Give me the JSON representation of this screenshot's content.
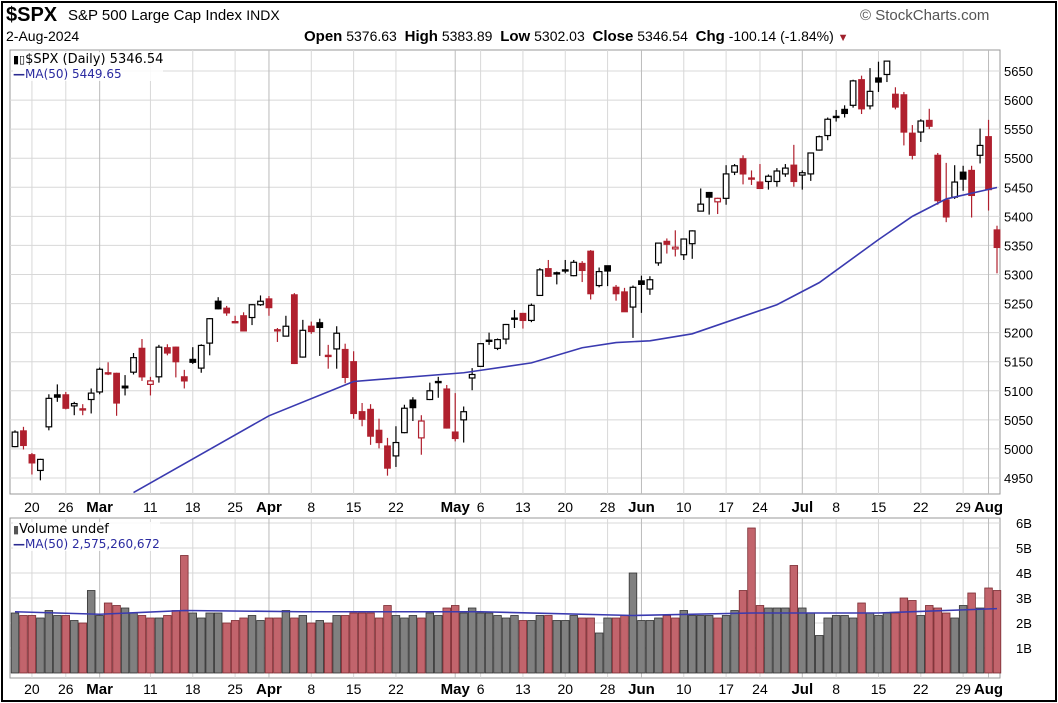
{
  "header": {
    "symbol": "$SPX",
    "name": "S&P 500 Large Cap Index",
    "exchange": "INDX",
    "date": "2-Aug-2024",
    "open_label": "Open",
    "open": "5376.63",
    "high_label": "High",
    "high": "5383.89",
    "low_label": "Low",
    "low": "5302.03",
    "close_label": "Close",
    "close": "5346.54",
    "chg_label": "Chg",
    "chg": "-100.14 (-1.84%)",
    "chg_icon": "triangle-down-icon",
    "watermark": "© StockCharts.com"
  },
  "colors": {
    "up": "#000000",
    "down": "#b0202e",
    "ma": "#3a3ab0",
    "vol_down": "#c2646c",
    "vol_up": "#808080",
    "grid": "#d8d8d8"
  },
  "price_legend": {
    "series": "$SPX (Daily) 5346.54",
    "ma": "MA(50) 5449.65"
  },
  "volume_legend": {
    "series": "Volume undef",
    "ma": "MA(50) 2,575,260,672"
  },
  "chart_data": {
    "type": "candlestick",
    "price_axis": {
      "range": [
        4930,
        5680
      ],
      "ticks": [
        4950,
        5000,
        5050,
        5100,
        5150,
        5200,
        5250,
        5300,
        5350,
        5400,
        5450,
        5500,
        5550,
        5600,
        5650
      ]
    },
    "volume_axis": {
      "unit": "B",
      "range": [
        0,
        6.2
      ],
      "ticks": [
        "1B",
        "2B",
        "3B",
        "4B",
        "5B",
        "6B"
      ]
    },
    "x_ticks": [
      {
        "label": "20",
        "date": "2024-02-20",
        "major": false
      },
      {
        "label": "26",
        "date": "2024-02-26",
        "major": false
      },
      {
        "label": "Mar",
        "date": "2024-03-01",
        "major": true
      },
      {
        "label": "11",
        "date": "2024-03-11",
        "major": false
      },
      {
        "label": "18",
        "date": "2024-03-18",
        "major": false
      },
      {
        "label": "25",
        "date": "2024-03-25",
        "major": false
      },
      {
        "label": "Apr",
        "date": "2024-04-01",
        "major": true
      },
      {
        "label": "8",
        "date": "2024-04-08",
        "major": false
      },
      {
        "label": "15",
        "date": "2024-04-15",
        "major": false
      },
      {
        "label": "22",
        "date": "2024-04-22",
        "major": false
      },
      {
        "label": "May",
        "date": "2024-05-01",
        "major": true
      },
      {
        "label": "6",
        "date": "2024-05-06",
        "major": false
      },
      {
        "label": "13",
        "date": "2024-05-13",
        "major": false
      },
      {
        "label": "20",
        "date": "2024-05-20",
        "major": false
      },
      {
        "label": "28",
        "date": "2024-05-28",
        "major": false
      },
      {
        "label": "Jun",
        "date": "2024-06-03",
        "major": true
      },
      {
        "label": "10",
        "date": "2024-06-10",
        "major": false
      },
      {
        "label": "17",
        "date": "2024-06-17",
        "major": false
      },
      {
        "label": "24",
        "date": "2024-06-24",
        "major": false
      },
      {
        "label": "Jul",
        "date": "2024-07-01",
        "major": true
      },
      {
        "label": "8",
        "date": "2024-07-08",
        "major": false
      },
      {
        "label": "15",
        "date": "2024-07-15",
        "major": false
      },
      {
        "label": "22",
        "date": "2024-07-22",
        "major": false
      },
      {
        "label": "29",
        "date": "2024-07-29",
        "major": false
      },
      {
        "label": "Aug",
        "date": "2024-08-01",
        "major": true
      }
    ],
    "columns": [
      "date",
      "open",
      "high",
      "low",
      "close",
      "volume_B"
    ],
    "candles": [
      [
        "2024-02-15",
        5004,
        5032,
        5003,
        5029,
        2.4
      ],
      [
        "2024-02-16",
        5031,
        5038,
        4999,
        5006,
        2.3
      ],
      [
        "2024-02-20",
        4990,
        4993,
        4956,
        4976,
        2.3
      ],
      [
        "2024-02-21",
        4963,
        4983,
        4946,
        4982,
        2.2
      ],
      [
        "2024-02-22",
        5038,
        5094,
        5032,
        5087,
        2.5
      ],
      [
        "2024-02-23",
        5093,
        5111,
        5081,
        5089,
        2.3
      ],
      [
        "2024-02-26",
        5093,
        5098,
        5068,
        5070,
        2.3
      ],
      [
        "2024-02-27",
        5074,
        5081,
        5058,
        5078,
        2.1
      ],
      [
        "2024-02-28",
        5068,
        5077,
        5058,
        5069,
        2.0
      ],
      [
        "2024-02-29",
        5085,
        5104,
        5061,
        5096,
        3.3
      ],
      [
        "2024-03-01",
        5098,
        5140,
        5094,
        5137,
        2.3
      ],
      [
        "2024-03-04",
        5131,
        5149,
        5127,
        5131,
        2.8
      ],
      [
        "2024-03-05",
        5130,
        5131,
        5057,
        5079,
        2.7
      ],
      [
        "2024-03-06",
        5108,
        5127,
        5092,
        5105,
        2.6
      ],
      [
        "2024-03-07",
        5132,
        5165,
        5128,
        5157,
        2.4
      ],
      [
        "2024-03-08",
        5173,
        5189,
        5117,
        5124,
        2.3
      ],
      [
        "2024-03-11",
        5111,
        5124,
        5092,
        5117,
        2.2
      ],
      [
        "2024-03-12",
        5124,
        5179,
        5114,
        5175,
        2.2
      ],
      [
        "2024-03-13",
        5174,
        5180,
        5161,
        5165,
        2.3
      ],
      [
        "2024-03-14",
        5175,
        5176,
        5123,
        5150,
        2.5
      ],
      [
        "2024-03-15",
        5124,
        5136,
        5104,
        5117,
        4.7
      ],
      [
        "2024-03-18",
        5154,
        5175,
        5146,
        5149,
        2.4
      ],
      [
        "2024-03-19",
        5139,
        5180,
        5131,
        5178,
        2.2
      ],
      [
        "2024-03-20",
        5182,
        5225,
        5161,
        5224,
        2.4
      ],
      [
        "2024-03-21",
        5254,
        5261,
        5240,
        5241,
        2.4
      ],
      [
        "2024-03-22",
        5242,
        5246,
        5229,
        5234,
        2.0
      ],
      [
        "2024-03-25",
        5219,
        5229,
        5216,
        5218,
        2.1
      ],
      [
        "2024-03-26",
        5229,
        5235,
        5203,
        5203,
        2.2
      ],
      [
        "2024-03-27",
        5226,
        5249,
        5213,
        5248,
        2.3
      ],
      [
        "2024-03-28",
        5248,
        5264,
        5246,
        5254,
        2.1
      ],
      [
        "2024-04-01",
        5258,
        5263,
        5229,
        5243,
        2.2
      ],
      [
        "2024-04-02",
        5204,
        5208,
        5184,
        5205,
        2.2
      ],
      [
        "2024-04-03",
        5194,
        5229,
        5194,
        5211,
        2.5
      ],
      [
        "2024-04-04",
        5265,
        5268,
        5146,
        5147,
        2.2
      ],
      [
        "2024-04-05",
        5158,
        5222,
        5157,
        5204,
        2.3
      ],
      [
        "2024-04-08",
        5211,
        5219,
        5198,
        5202,
        2.0
      ],
      [
        "2024-04-09",
        5217,
        5224,
        5160,
        5209,
        2.1
      ],
      [
        "2024-04-10",
        5160,
        5179,
        5138,
        5161,
        2.0
      ],
      [
        "2024-04-11",
        5172,
        5211,
        5138,
        5199,
        2.3
      ],
      [
        "2024-04-12",
        5171,
        5181,
        5113,
        5123,
        2.3
      ],
      [
        "2024-04-15",
        5150,
        5168,
        5052,
        5061,
        2.4
      ],
      [
        "2024-04-16",
        5064,
        5079,
        5039,
        5051,
        2.4
      ],
      [
        "2024-04-17",
        5068,
        5077,
        5007,
        5022,
        2.4
      ],
      [
        "2024-04-18",
        5032,
        5052,
        5001,
        5011,
        2.2
      ],
      [
        "2024-04-19",
        5005,
        5019,
        4954,
        4967,
        2.7
      ],
      [
        "2024-04-22",
        4988,
        5039,
        4969,
        5011,
        2.3
      ],
      [
        "2024-04-23",
        5028,
        5076,
        5027,
        5070,
        2.2
      ],
      [
        "2024-04-24",
        5084,
        5089,
        5048,
        5071,
        2.3
      ],
      [
        "2024-04-25",
        5019,
        5058,
        4990,
        5048,
        2.2
      ],
      [
        "2024-04-26",
        5085,
        5114,
        5084,
        5100,
        2.4
      ],
      [
        "2024-04-29",
        5114,
        5124,
        5088,
        5116,
        2.3
      ],
      [
        "2024-04-30",
        5103,
        5110,
        5035,
        5036,
        2.6
      ],
      [
        "2024-05-01",
        5029,
        5096,
        5013,
        5018,
        2.7
      ],
      [
        "2024-05-02",
        5050,
        5073,
        5011,
        5064,
        2.4
      ],
      [
        "2024-05-03",
        5122,
        5139,
        5101,
        5128,
        2.6
      ],
      [
        "2024-05-06",
        5142,
        5181,
        5142,
        5181,
        2.4
      ],
      [
        "2024-05-07",
        5187,
        5200,
        5179,
        5187,
        2.4
      ],
      [
        "2024-05-08",
        5173,
        5190,
        5170,
        5188,
        2.3
      ],
      [
        "2024-05-09",
        5189,
        5215,
        5180,
        5214,
        2.2
      ],
      [
        "2024-05-10",
        5225,
        5239,
        5208,
        5223,
        2.3
      ],
      [
        "2024-05-13",
        5233,
        5234,
        5207,
        5221,
        2.1
      ],
      [
        "2024-05-14",
        5221,
        5250,
        5218,
        5247,
        2.1
      ],
      [
        "2024-05-15",
        5264,
        5311,
        5263,
        5308,
        2.3
      ],
      [
        "2024-05-16",
        5310,
        5325,
        5296,
        5297,
        2.3
      ],
      [
        "2024-05-17",
        5303,
        5305,
        5283,
        5303,
        2.1
      ],
      [
        "2024-05-20",
        5306,
        5325,
        5302,
        5308,
        2.1
      ],
      [
        "2024-05-21",
        5298,
        5325,
        5297,
        5321,
        2.3
      ],
      [
        "2024-05-22",
        5319,
        5323,
        5287,
        5307,
        2.2
      ],
      [
        "2024-05-23",
        5340,
        5342,
        5257,
        5267,
        2.2
      ],
      [
        "2024-05-24",
        5281,
        5312,
        5278,
        5305,
        1.6
      ],
      [
        "2024-05-28",
        5315,
        5315,
        5280,
        5306,
        2.2
      ],
      [
        "2024-05-29",
        5278,
        5282,
        5255,
        5267,
        2.2
      ],
      [
        "2024-05-30",
        5270,
        5277,
        5236,
        5236,
        2.3
      ],
      [
        "2024-05-31",
        5244,
        5281,
        5191,
        5278,
        4.0
      ],
      [
        "2024-06-03",
        5289,
        5298,
        5234,
        5283,
        2.1
      ],
      [
        "2024-06-04",
        5275,
        5297,
        5265,
        5291,
        2.1
      ],
      [
        "2024-06-05",
        5320,
        5354,
        5315,
        5354,
        2.2
      ],
      [
        "2024-06-06",
        5357,
        5362,
        5336,
        5352,
        2.3
      ],
      [
        "2024-06-07",
        5344,
        5376,
        5331,
        5347,
        2.2
      ],
      [
        "2024-06-10",
        5334,
        5362,
        5325,
        5361,
        2.5
      ],
      [
        "2024-06-11",
        5353,
        5376,
        5327,
        5375,
        2.3
      ],
      [
        "2024-06-12",
        5409,
        5448,
        5409,
        5421,
        2.3
      ],
      [
        "2024-06-13",
        5441,
        5442,
        5403,
        5433,
        2.3
      ],
      [
        "2024-06-14",
        5425,
        5432,
        5404,
        5431,
        2.2
      ],
      [
        "2024-06-17",
        5431,
        5488,
        5420,
        5473,
        2.3
      ],
      [
        "2024-06-18",
        5476,
        5490,
        5471,
        5487,
        2.5
      ],
      [
        "2024-06-20",
        5499,
        5505,
        5455,
        5473,
        3.3
      ],
      [
        "2024-06-21",
        5466,
        5479,
        5454,
        5465,
        5.8
      ],
      [
        "2024-06-24",
        5459,
        5490,
        5447,
        5448,
        2.7
      ],
      [
        "2024-06-25",
        5460,
        5472,
        5446,
        5469,
        2.6
      ],
      [
        "2024-06-26",
        5460,
        5483,
        5451,
        5478,
        2.6
      ],
      [
        "2024-06-27",
        5473,
        5490,
        5468,
        5483,
        2.6
      ],
      [
        "2024-06-28",
        5488,
        5523,
        5451,
        5460,
        4.3
      ],
      [
        "2024-07-01",
        5471,
        5479,
        5446,
        5475,
        2.6
      ],
      [
        "2024-07-02",
        5473,
        5509,
        5461,
        5509,
        2.4
      ],
      [
        "2024-07-03",
        5514,
        5539,
        5513,
        5537,
        1.5
      ],
      [
        "2024-07-05",
        5539,
        5570,
        5531,
        5567,
        2.2
      ],
      [
        "2024-07-08",
        5572,
        5583,
        5563,
        5572,
        2.3
      ],
      [
        "2024-07-09",
        5584,
        5591,
        5570,
        5577,
        2.3
      ],
      [
        "2024-07-10",
        5591,
        5635,
        5587,
        5633,
        2.2
      ],
      [
        "2024-07-11",
        5635,
        5642,
        5576,
        5585,
        2.8
      ],
      [
        "2024-07-12",
        5590,
        5655,
        5584,
        5615,
        2.4
      ],
      [
        "2024-07-15",
        5638,
        5666,
        5614,
        5631,
        2.3
      ],
      [
        "2024-07-16",
        5644,
        5667,
        5631,
        5667,
        2.4
      ],
      [
        "2024-07-17",
        5610,
        5622,
        5584,
        5588,
        2.4
      ],
      [
        "2024-07-18",
        5609,
        5614,
        5522,
        5545,
        3.0
      ],
      [
        "2024-07-19",
        5543,
        5557,
        5498,
        5505,
        2.9
      ],
      [
        "2024-07-22",
        5545,
        5567,
        5528,
        5564,
        2.3
      ],
      [
        "2024-07-23",
        5565,
        5585,
        5550,
        5555,
        2.7
      ],
      [
        "2024-07-24",
        5505,
        5509,
        5420,
        5427,
        2.6
      ],
      [
        "2024-07-25",
        5428,
        5492,
        5390,
        5399,
        2.4
      ],
      [
        "2024-07-26",
        5433,
        5488,
        5430,
        5459,
        2.2
      ],
      [
        "2024-07-29",
        5476,
        5487,
        5444,
        5464,
        2.7
      ],
      [
        "2024-07-30",
        5479,
        5487,
        5398,
        5436,
        3.2
      ],
      [
        "2024-07-31",
        5505,
        5551,
        5491,
        5522,
        2.6
      ],
      [
        "2024-08-01",
        5537,
        5566,
        5410,
        5446,
        3.4
      ],
      [
        "2024-08-02",
        5376.63,
        5383.89,
        5302.03,
        5346.54,
        3.3
      ]
    ],
    "ma50_price": [
      {
        "date": "2024-03-07",
        "value": 4925
      },
      {
        "date": "2024-04-01",
        "value": 5057
      },
      {
        "date": "2024-04-15",
        "value": 5116
      },
      {
        "date": "2024-05-02",
        "value": 5131
      },
      {
        "date": "2024-05-14",
        "value": 5148
      },
      {
        "date": "2024-05-22",
        "value": 5174
      },
      {
        "date": "2024-05-29",
        "value": 5183
      },
      {
        "date": "2024-06-04",
        "value": 5186
      },
      {
        "date": "2024-06-11",
        "value": 5198
      },
      {
        "date": "2024-06-26",
        "value": 5248
      },
      {
        "date": "2024-07-03",
        "value": 5286
      },
      {
        "date": "2024-07-15",
        "value": 5360
      },
      {
        "date": "2024-07-19",
        "value": 5400
      },
      {
        "date": "2024-07-25",
        "value": 5430
      },
      {
        "date": "2024-08-02",
        "value": 5449.65
      }
    ],
    "ma50_volume_B": [
      {
        "date": "2024-02-15",
        "value": 2.45
      },
      {
        "date": "2024-03-01",
        "value": 2.35
      },
      {
        "date": "2024-03-15",
        "value": 2.5
      },
      {
        "date": "2024-04-05",
        "value": 2.45
      },
      {
        "date": "2024-05-06",
        "value": 2.45
      },
      {
        "date": "2024-05-31",
        "value": 2.3
      },
      {
        "date": "2024-06-21",
        "value": 2.4
      },
      {
        "date": "2024-07-15",
        "value": 2.4
      },
      {
        "date": "2024-08-02",
        "value": 2.575
      }
    ]
  }
}
